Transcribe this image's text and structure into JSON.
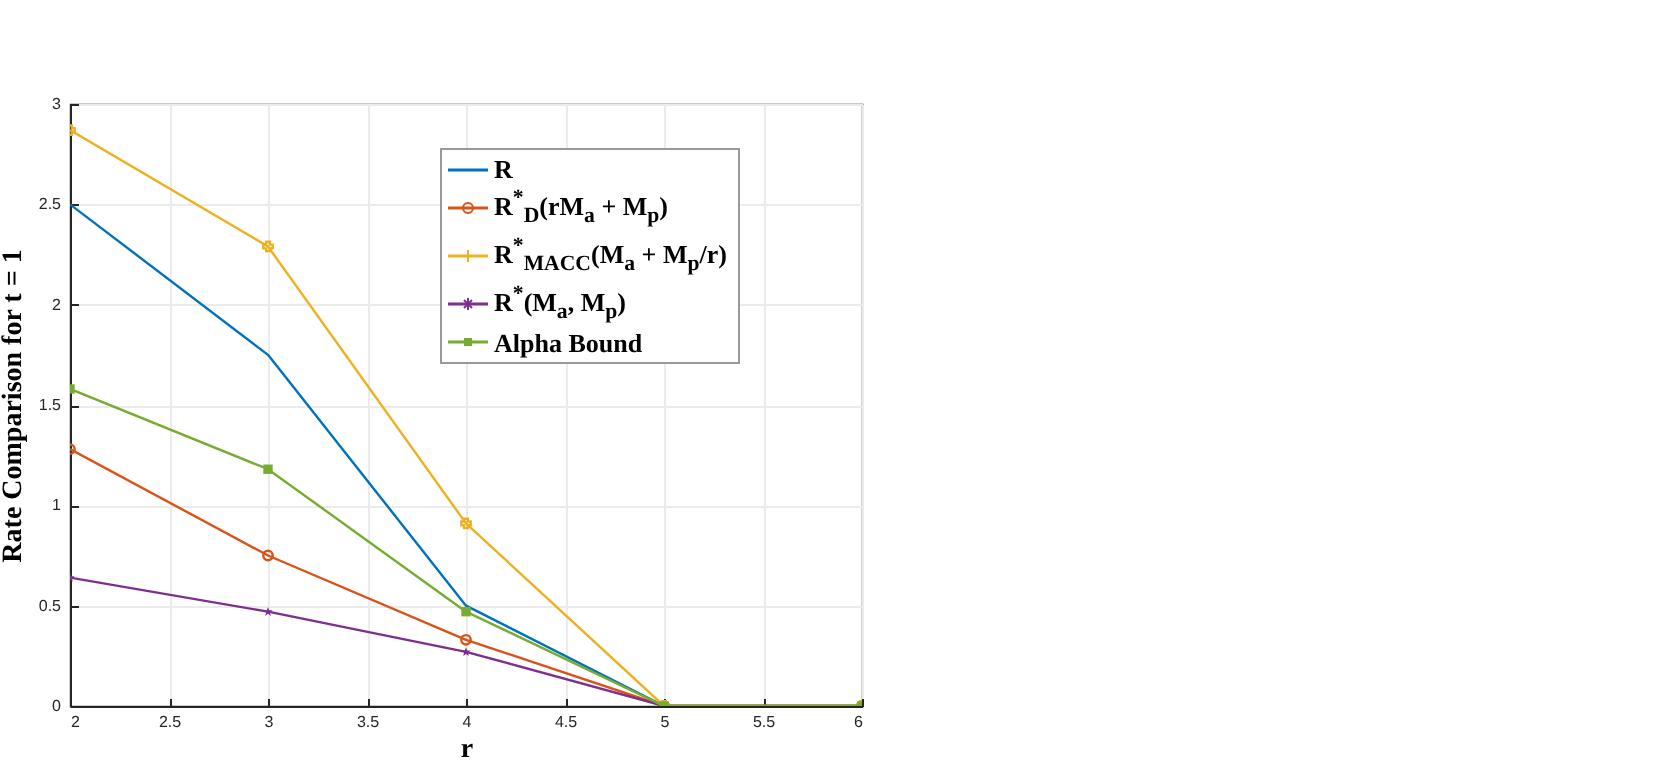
{
  "chart_data": {
    "type": "line",
    "xlabel": "r",
    "ylabel": "Rate Comparison for t = 1",
    "x": [
      2,
      3,
      4,
      5,
      6
    ],
    "series": [
      {
        "name": "R",
        "color": "#0072bd",
        "values": [
          2.5,
          1.75,
          0.5,
          0,
          0
        ],
        "marker": "none"
      },
      {
        "name": "R$^{*}$$_{D}$(rM$_{a}$ + M$_{p}$)",
        "color": "#d95319",
        "values": [
          1.28,
          0.75,
          0.33,
          0,
          0
        ],
        "marker": "circle"
      },
      {
        "name": "R$^{*}$$_{MACC}$(M$_{a}$ + M$_{p}$/r)",
        "color": "#edb120",
        "values": [
          2.87,
          2.29,
          0.91,
          0,
          0
        ],
        "marker": "cross"
      },
      {
        "name": "R$^{*}$(M$_{a}$, M$_{p}$)",
        "color": "#7e2f8e",
        "values": [
          0.64,
          0.47,
          0.27,
          0,
          0
        ],
        "marker": "star"
      },
      {
        "name": "Alpha Bound",
        "color": "#77ac30",
        "values": [
          1.58,
          1.18,
          0.47,
          0,
          0
        ],
        "marker": "square"
      }
    ],
    "xlim": [
      2,
      6
    ],
    "xticks": [
      2,
      2.5,
      3,
      3.5,
      4,
      4.5,
      5,
      5.5,
      6
    ],
    "ylim": [
      0,
      3
    ],
    "yticks": [
      0,
      0.5,
      1,
      1.5,
      2,
      2.5,
      3
    ],
    "grid": true,
    "legend": "top right",
    "line_style": "solid"
  }
}
